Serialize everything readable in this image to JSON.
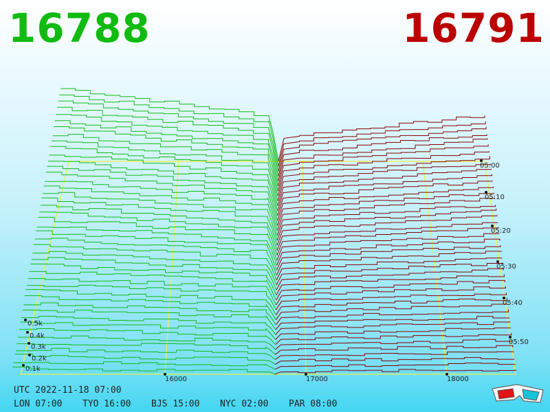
{
  "prices": {
    "bid": "16788",
    "ask": "16791",
    "bid_color": "#11bb11",
    "ask_color": "#bb0000"
  },
  "chart_data": {
    "type": "3d-depth",
    "x_ticks": [
      "16000",
      "17000",
      "18000"
    ],
    "z_ticks": [
      "0.1k",
      "0.2k",
      "0.3k",
      "0.4k",
      "0.5k"
    ],
    "time_ticks": [
      "05:00",
      "05:10",
      "05:20",
      "05:30",
      "05:40",
      "05:50"
    ],
    "bid_color": "#11bb11",
    "ask_color": "#880000",
    "frame_color": "#eeee44"
  },
  "footer": {
    "utc": "UTC 2022-11-18 07:00",
    "zones": [
      "LON 07:00",
      "TYO 16:00",
      "BJS 15:00",
      "NYC 02:00",
      "PAR 08:00"
    ]
  },
  "icons": {
    "glasses": "3d-glasses-icon"
  }
}
